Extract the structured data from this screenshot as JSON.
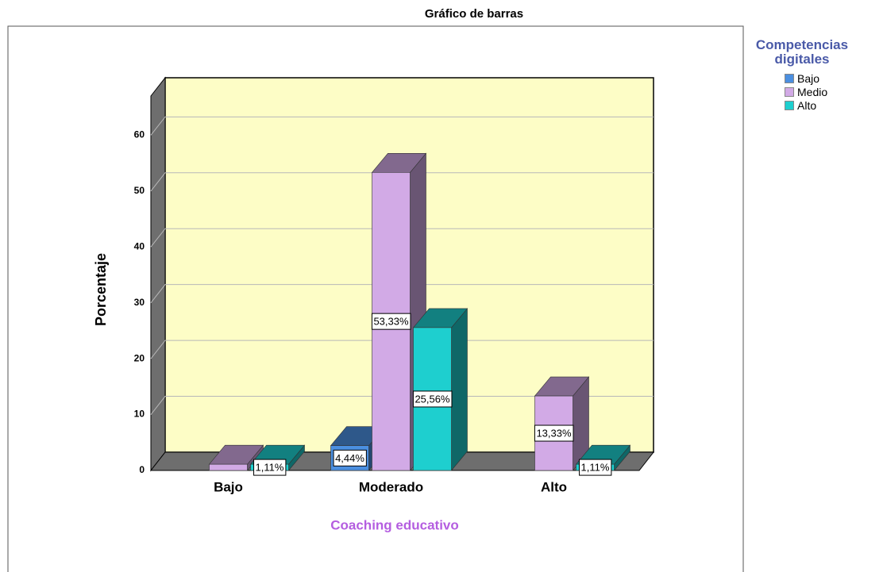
{
  "chart_data": {
    "type": "bar3d",
    "title": "Gráfico de barras",
    "x_label": "Coaching educativo",
    "y_label": "Porcentaje",
    "legend_title": "Competencias digitales",
    "categories": [
      "Bajo",
      "Moderado",
      "Alto"
    ],
    "series": [
      {
        "name": "Bajo",
        "color": "#4b8fe0",
        "values": [
          null,
          4.44,
          null
        ],
        "value_labels": [
          null,
          "4,44%",
          null
        ]
      },
      {
        "name": "Medio",
        "color": "#d2aae6",
        "values": [
          1.11,
          53.33,
          13.33
        ],
        "value_labels": [
          null,
          "53,33%",
          "13,33%"
        ]
      },
      {
        "name": "Alto",
        "color": "#1ecfcf",
        "values": [
          1.11,
          25.56,
          1.11
        ],
        "value_labels": [
          "1,11%",
          "25,56%",
          "1,11%"
        ]
      }
    ],
    "ylim": [
      0,
      67
    ],
    "yticks": [
      0,
      10,
      20,
      30,
      40,
      50,
      60
    ],
    "grid": true
  }
}
